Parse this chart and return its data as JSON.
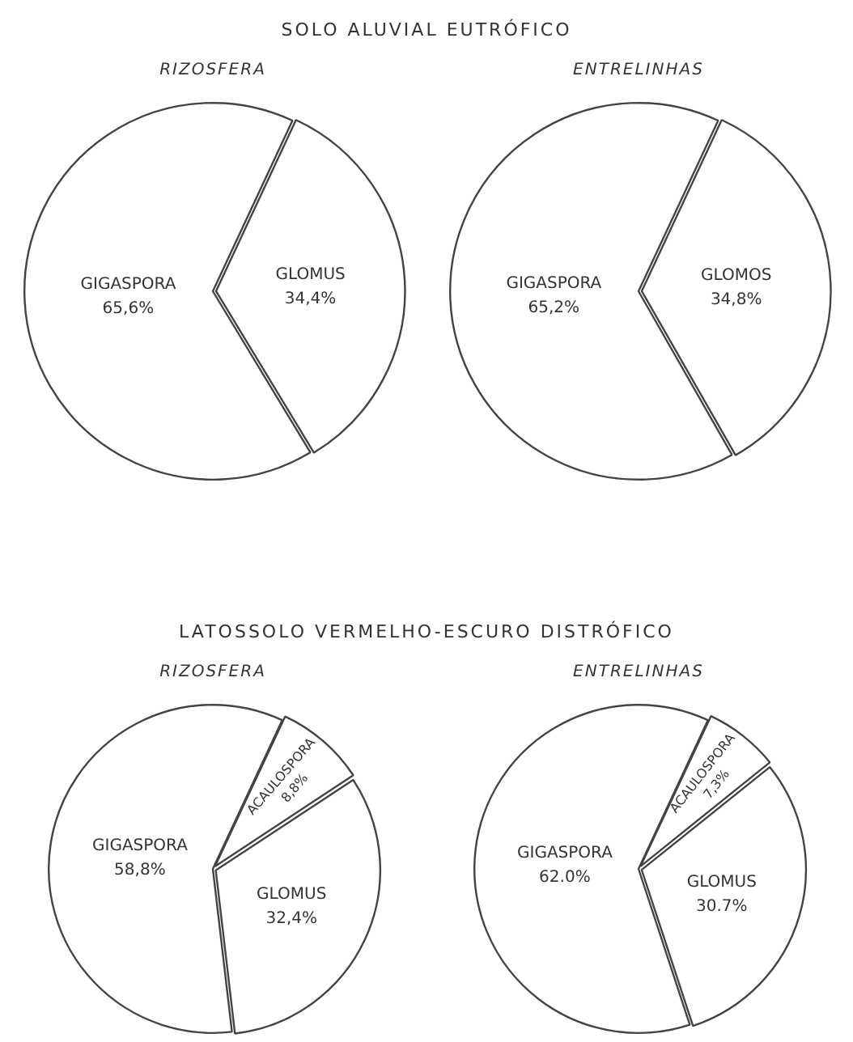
{
  "chart_data": [
    {
      "type": "pie",
      "title": "RIZOSFERA",
      "annotations": [
        "SOLO ALUVIAL EUTRÓFICO"
      ],
      "categories": [
        "GIGASPORA",
        "GLOMUS"
      ],
      "values": [
        65.6,
        34.4
      ],
      "value_labels": [
        "65,6%",
        "34,4%"
      ],
      "colors": [
        "#ffffff",
        "#ffffff"
      ],
      "legend": false
    },
    {
      "type": "pie",
      "title": "ENTRELINHAS",
      "categories": [
        "GIGASPORA",
        "GLOMOS"
      ],
      "values": [
        65.2,
        34.8
      ],
      "value_labels": [
        "65,2%",
        "34,8%"
      ],
      "colors": [
        "#ffffff",
        "#ffffff"
      ],
      "legend": false
    },
    {
      "type": "pie",
      "title": "RIZOSFERA",
      "annotations": [
        "LATOSSOLO VERMELHO-ESCURO DISTRÓFICO"
      ],
      "categories": [
        "GIGASPORA",
        "ACAULOSPORA",
        "GLOMUS"
      ],
      "values": [
        58.8,
        8.8,
        32.4
      ],
      "value_labels": [
        "58,8%",
        "8,8%",
        "32,4%"
      ],
      "colors": [
        "#ffffff",
        "#ffffff",
        "#ffffff"
      ],
      "legend": false
    },
    {
      "type": "pie",
      "title": "ENTRELINHAS",
      "categories": [
        "GIGASPORA",
        "ACAULOSPORA",
        "GLOMUS"
      ],
      "values": [
        62.0,
        7.3,
        30.7
      ],
      "value_labels": [
        "62.0%",
        "7,3%",
        "30.7%"
      ],
      "colors": [
        "#ffffff",
        "#ffffff",
        "#ffffff"
      ],
      "legend": false
    }
  ]
}
